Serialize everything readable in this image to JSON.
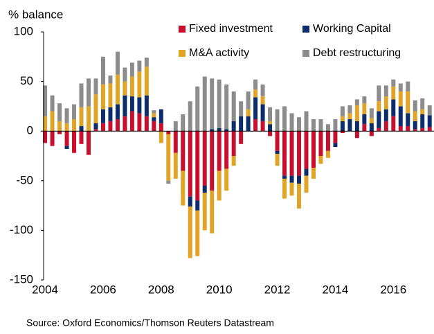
{
  "chart_data": {
    "type": "bar",
    "stacked": true,
    "y_label": "% balance",
    "source": "Source: Oxford Economics/Thomson Reuters Datastream",
    "x": [
      2004,
      2004.25,
      2004.5,
      2004.75,
      2005,
      2005.25,
      2005.5,
      2005.75,
      2006,
      2006.25,
      2006.5,
      2006.75,
      2007,
      2007.25,
      2007.5,
      2007.75,
      2008,
      2008.25,
      2008.5,
      2008.75,
      2009,
      2009.25,
      2009.5,
      2009.75,
      2010,
      2010.25,
      2010.5,
      2010.75,
      2011,
      2011.25,
      2011.5,
      2011.75,
      2012,
      2012.25,
      2012.5,
      2012.75,
      2013,
      2013.25,
      2013.5,
      2013.75,
      2014,
      2014.25,
      2014.5,
      2014.75,
      2015,
      2015.25,
      2015.5,
      2015.75,
      2016,
      2016.25,
      2016.5,
      2016.75,
      2017,
      2017.25
    ],
    "series": [
      {
        "name": "Fixed investment",
        "color": "#c8102e",
        "values": [
          -12,
          -15,
          -3,
          -15,
          -22,
          -13,
          -24,
          2,
          8,
          10,
          12,
          15,
          20,
          18,
          15,
          10,
          8,
          -3,
          -22,
          -40,
          -66,
          -70,
          -55,
          -60,
          -40,
          -38,
          -25,
          -13,
          0,
          12,
          10,
          -5,
          -20,
          -45,
          -45,
          -45,
          -38,
          -37,
          -25,
          -20,
          -12,
          -2,
          0,
          -7,
          7,
          -5,
          3,
          10,
          15,
          5,
          5,
          2,
          3,
          4
        ]
      },
      {
        "name": "Working Capital",
        "color": "#0b2d6b",
        "values": [
          0,
          0,
          0,
          -3,
          0,
          5,
          0,
          6,
          14,
          14,
          15,
          21,
          15,
          16,
          21,
          4,
          14,
          0,
          0,
          0,
          -10,
          -10,
          -7,
          2,
          3,
          2,
          10,
          15,
          15,
          22,
          17,
          7,
          -3,
          -3,
          -7,
          -8,
          -7,
          0,
          0,
          0,
          -4,
          10,
          12,
          10,
          10,
          8,
          17,
          12,
          17,
          20,
          13,
          8,
          14,
          12
        ]
      },
      {
        "name": "M&A activity",
        "color": "#e0a526",
        "values": [
          15,
          20,
          10,
          8,
          12,
          19,
          25,
          29,
          25,
          24,
          30,
          14,
          20,
          26,
          29,
          4,
          -12,
          -47,
          -26,
          -35,
          -52,
          -46,
          -38,
          -43,
          -30,
          -22,
          -10,
          0,
          7,
          8,
          8,
          3,
          -12,
          -20,
          -13,
          -25,
          -17,
          -11,
          -8,
          -7,
          0,
          5,
          6,
          16,
          11,
          5,
          10,
          13,
          13,
          15,
          22,
          10,
          5,
          0
        ]
      },
      {
        "name": "Debt restructuring",
        "color": "#8c8c8c",
        "values": [
          31,
          16,
          18,
          15,
          15,
          24,
          28,
          16,
          28,
          8,
          23,
          14,
          14,
          11,
          9,
          3,
          0,
          -3,
          10,
          17,
          30,
          45,
          55,
          51,
          49,
          45,
          30,
          15,
          18,
          10,
          12,
          14,
          22,
          25,
          18,
          14,
          20,
          12,
          12,
          7,
          12,
          10,
          8,
          6,
          7,
          10,
          16,
          11,
          7,
          8,
          10,
          11,
          11,
          10
        ]
      }
    ],
    "xlim": [
      2003.95,
      2017.4
    ],
    "xticks": [
      2004,
      2006,
      2008,
      2010,
      2012,
      2014,
      2016
    ],
    "ylim": [
      -150,
      100
    ],
    "yticks": [
      -150,
      -100,
      -50,
      0,
      50,
      100
    ]
  }
}
